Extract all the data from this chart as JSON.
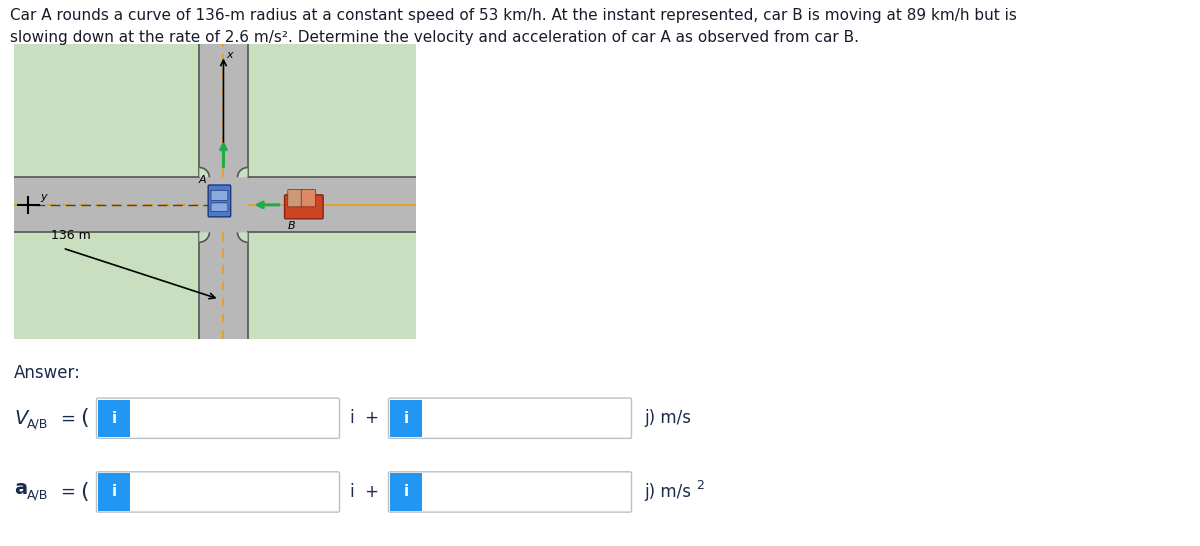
{
  "title_line1": "Car A rounds a curve of 136-m radius at a constant speed of 53 km/h. At the instant represented, car B is moving at 89 km/h but is",
  "title_line2": "slowing down at the rate of 2.6 m/s². Determine the velocity and acceleration of car A as observed from car B.",
  "title_fontsize": 11.0,
  "title_color": "#1a1a2e",
  "background_color": "#ffffff",
  "diagram_bg": "#c8dfc0",
  "road_color": "#b8b8b8",
  "road_border_color": "#555555",
  "road_center_color": "#e8a020",
  "dash_color": "#444444",
  "text_color": "#1a2a4a",
  "answer_label": "Answer:",
  "icon_fill": "#2196F3",
  "icon_text": "i",
  "icon_text_color": "#ffffff",
  "radius_label": "136 m",
  "x_label": "x",
  "y_label": "y",
  "car_a_label": "A",
  "car_b_label": "B",
  "arrow_green": "#22aa44",
  "car_a_body": "#4a7acc",
  "car_a_window": "#88aadd",
  "car_b_body": "#cc4422",
  "car_b_window": "#dd8866",
  "car_b_windshield": "#cc9977"
}
